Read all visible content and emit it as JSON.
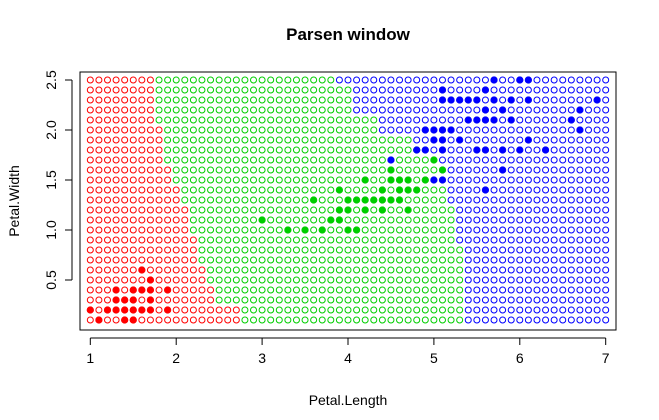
{
  "chart_data": {
    "type": "scatter",
    "title": "Parsen window",
    "xlabel": "Petal.Length",
    "ylabel": "Petal.Width",
    "xlim": [
      0.88,
      7.12
    ],
    "ylim": [
      0.0,
      2.58
    ],
    "xticks": [
      "1",
      "2",
      "3",
      "4",
      "5",
      "6",
      "7"
    ],
    "yticks": [
      "0.5",
      "1.0",
      "1.5",
      "2.0",
      "2.5"
    ],
    "grid": false,
    "legend": "none",
    "classes": [
      {
        "key": "setosa",
        "color": "#ff0000"
      },
      {
        "key": "versicolor",
        "color": "#00cd00"
      },
      {
        "key": "virginica",
        "color": "#0000ff"
      }
    ],
    "classification_grid": {
      "x_start": 1.0,
      "x_step": 0.1,
      "x_count": 61,
      "y_start": 0.1,
      "y_step": 0.1,
      "y_count": 25,
      "boundary_setosa_versicolor_x": [
        [
          0.1,
          2.8
        ],
        [
          0.2,
          2.8
        ],
        [
          0.3,
          2.5
        ],
        [
          0.5,
          2.4
        ],
        [
          0.7,
          2.3
        ],
        [
          1.0,
          2.2
        ],
        [
          1.3,
          2.1
        ],
        [
          1.5,
          2.0
        ],
        [
          1.7,
          1.9
        ],
        [
          2.1,
          1.8
        ],
        [
          2.5,
          1.8
        ]
      ],
      "boundary_versicolor_virginica_x": [
        [
          0.1,
          5.4
        ],
        [
          0.5,
          5.4
        ],
        [
          0.9,
          5.3
        ],
        [
          1.3,
          5.2
        ],
        [
          1.6,
          5.1
        ],
        [
          1.8,
          4.8
        ],
        [
          2.0,
          4.4
        ],
        [
          2.2,
          4.1
        ],
        [
          2.5,
          3.9
        ]
      ]
    },
    "series": [
      {
        "class": "setosa",
        "points": [
          [
            1.0,
            0.2
          ],
          [
            1.1,
            0.1
          ],
          [
            1.2,
            0.2
          ],
          [
            1.3,
            0.2
          ],
          [
            1.3,
            0.3
          ],
          [
            1.3,
            0.4
          ],
          [
            1.4,
            0.1
          ],
          [
            1.4,
            0.2
          ],
          [
            1.4,
            0.3
          ],
          [
            1.5,
            0.1
          ],
          [
            1.5,
            0.2
          ],
          [
            1.5,
            0.3
          ],
          [
            1.5,
            0.4
          ],
          [
            1.6,
            0.2
          ],
          [
            1.6,
            0.4
          ],
          [
            1.6,
            0.6
          ],
          [
            1.7,
            0.2
          ],
          [
            1.7,
            0.3
          ],
          [
            1.7,
            0.4
          ],
          [
            1.7,
            0.5
          ],
          [
            1.9,
            0.2
          ],
          [
            1.9,
            0.4
          ]
        ]
      },
      {
        "class": "versicolor",
        "points": [
          [
            3.0,
            1.1
          ],
          [
            3.3,
            1.0
          ],
          [
            3.5,
            1.0
          ],
          [
            3.6,
            1.3
          ],
          [
            3.7,
            1.0
          ],
          [
            3.8,
            1.1
          ],
          [
            3.9,
            1.1
          ],
          [
            3.9,
            1.2
          ],
          [
            3.9,
            1.4
          ],
          [
            4.0,
            1.0
          ],
          [
            4.0,
            1.2
          ],
          [
            4.0,
            1.3
          ],
          [
            4.1,
            1.0
          ],
          [
            4.1,
            1.3
          ],
          [
            4.2,
            1.2
          ],
          [
            4.2,
            1.3
          ],
          [
            4.2,
            1.5
          ],
          [
            4.3,
            1.3
          ],
          [
            4.4,
            1.2
          ],
          [
            4.4,
            1.3
          ],
          [
            4.4,
            1.4
          ],
          [
            4.5,
            1.3
          ],
          [
            4.5,
            1.5
          ],
          [
            4.5,
            1.6
          ],
          [
            4.6,
            1.3
          ],
          [
            4.6,
            1.4
          ],
          [
            4.6,
            1.5
          ],
          [
            4.7,
            1.2
          ],
          [
            4.7,
            1.4
          ],
          [
            4.7,
            1.5
          ],
          [
            4.8,
            1.4
          ],
          [
            4.8,
            1.8
          ],
          [
            4.9,
            1.5
          ],
          [
            5.0,
            1.7
          ],
          [
            5.1,
            1.6
          ]
        ]
      },
      {
        "class": "virginica",
        "points": [
          [
            4.5,
            1.7
          ],
          [
            4.8,
            1.8
          ],
          [
            4.9,
            1.8
          ],
          [
            4.9,
            2.0
          ],
          [
            5.0,
            1.5
          ],
          [
            5.0,
            1.9
          ],
          [
            5.0,
            2.0
          ],
          [
            5.1,
            1.5
          ],
          [
            5.1,
            1.8
          ],
          [
            5.1,
            1.9
          ],
          [
            5.1,
            2.0
          ],
          [
            5.1,
            2.3
          ],
          [
            5.1,
            2.4
          ],
          [
            5.2,
            2.0
          ],
          [
            5.2,
            2.3
          ],
          [
            5.3,
            1.9
          ],
          [
            5.3,
            2.3
          ],
          [
            5.4,
            2.1
          ],
          [
            5.4,
            2.3
          ],
          [
            5.5,
            1.8
          ],
          [
            5.5,
            2.1
          ],
          [
            5.5,
            2.3
          ],
          [
            5.6,
            1.4
          ],
          [
            5.6,
            1.8
          ],
          [
            5.6,
            2.1
          ],
          [
            5.6,
            2.2
          ],
          [
            5.6,
            2.4
          ],
          [
            5.7,
            2.1
          ],
          [
            5.7,
            2.3
          ],
          [
            5.7,
            2.5
          ],
          [
            5.8,
            1.6
          ],
          [
            5.8,
            1.8
          ],
          [
            5.8,
            2.2
          ],
          [
            5.9,
            2.1
          ],
          [
            5.9,
            2.3
          ],
          [
            6.0,
            1.8
          ],
          [
            6.0,
            2.5
          ],
          [
            6.1,
            1.9
          ],
          [
            6.1,
            2.3
          ],
          [
            6.1,
            2.5
          ],
          [
            6.3,
            1.8
          ],
          [
            6.6,
            2.1
          ],
          [
            6.7,
            2.0
          ],
          [
            6.7,
            2.2
          ],
          [
            6.9,
            2.3
          ]
        ]
      }
    ]
  }
}
